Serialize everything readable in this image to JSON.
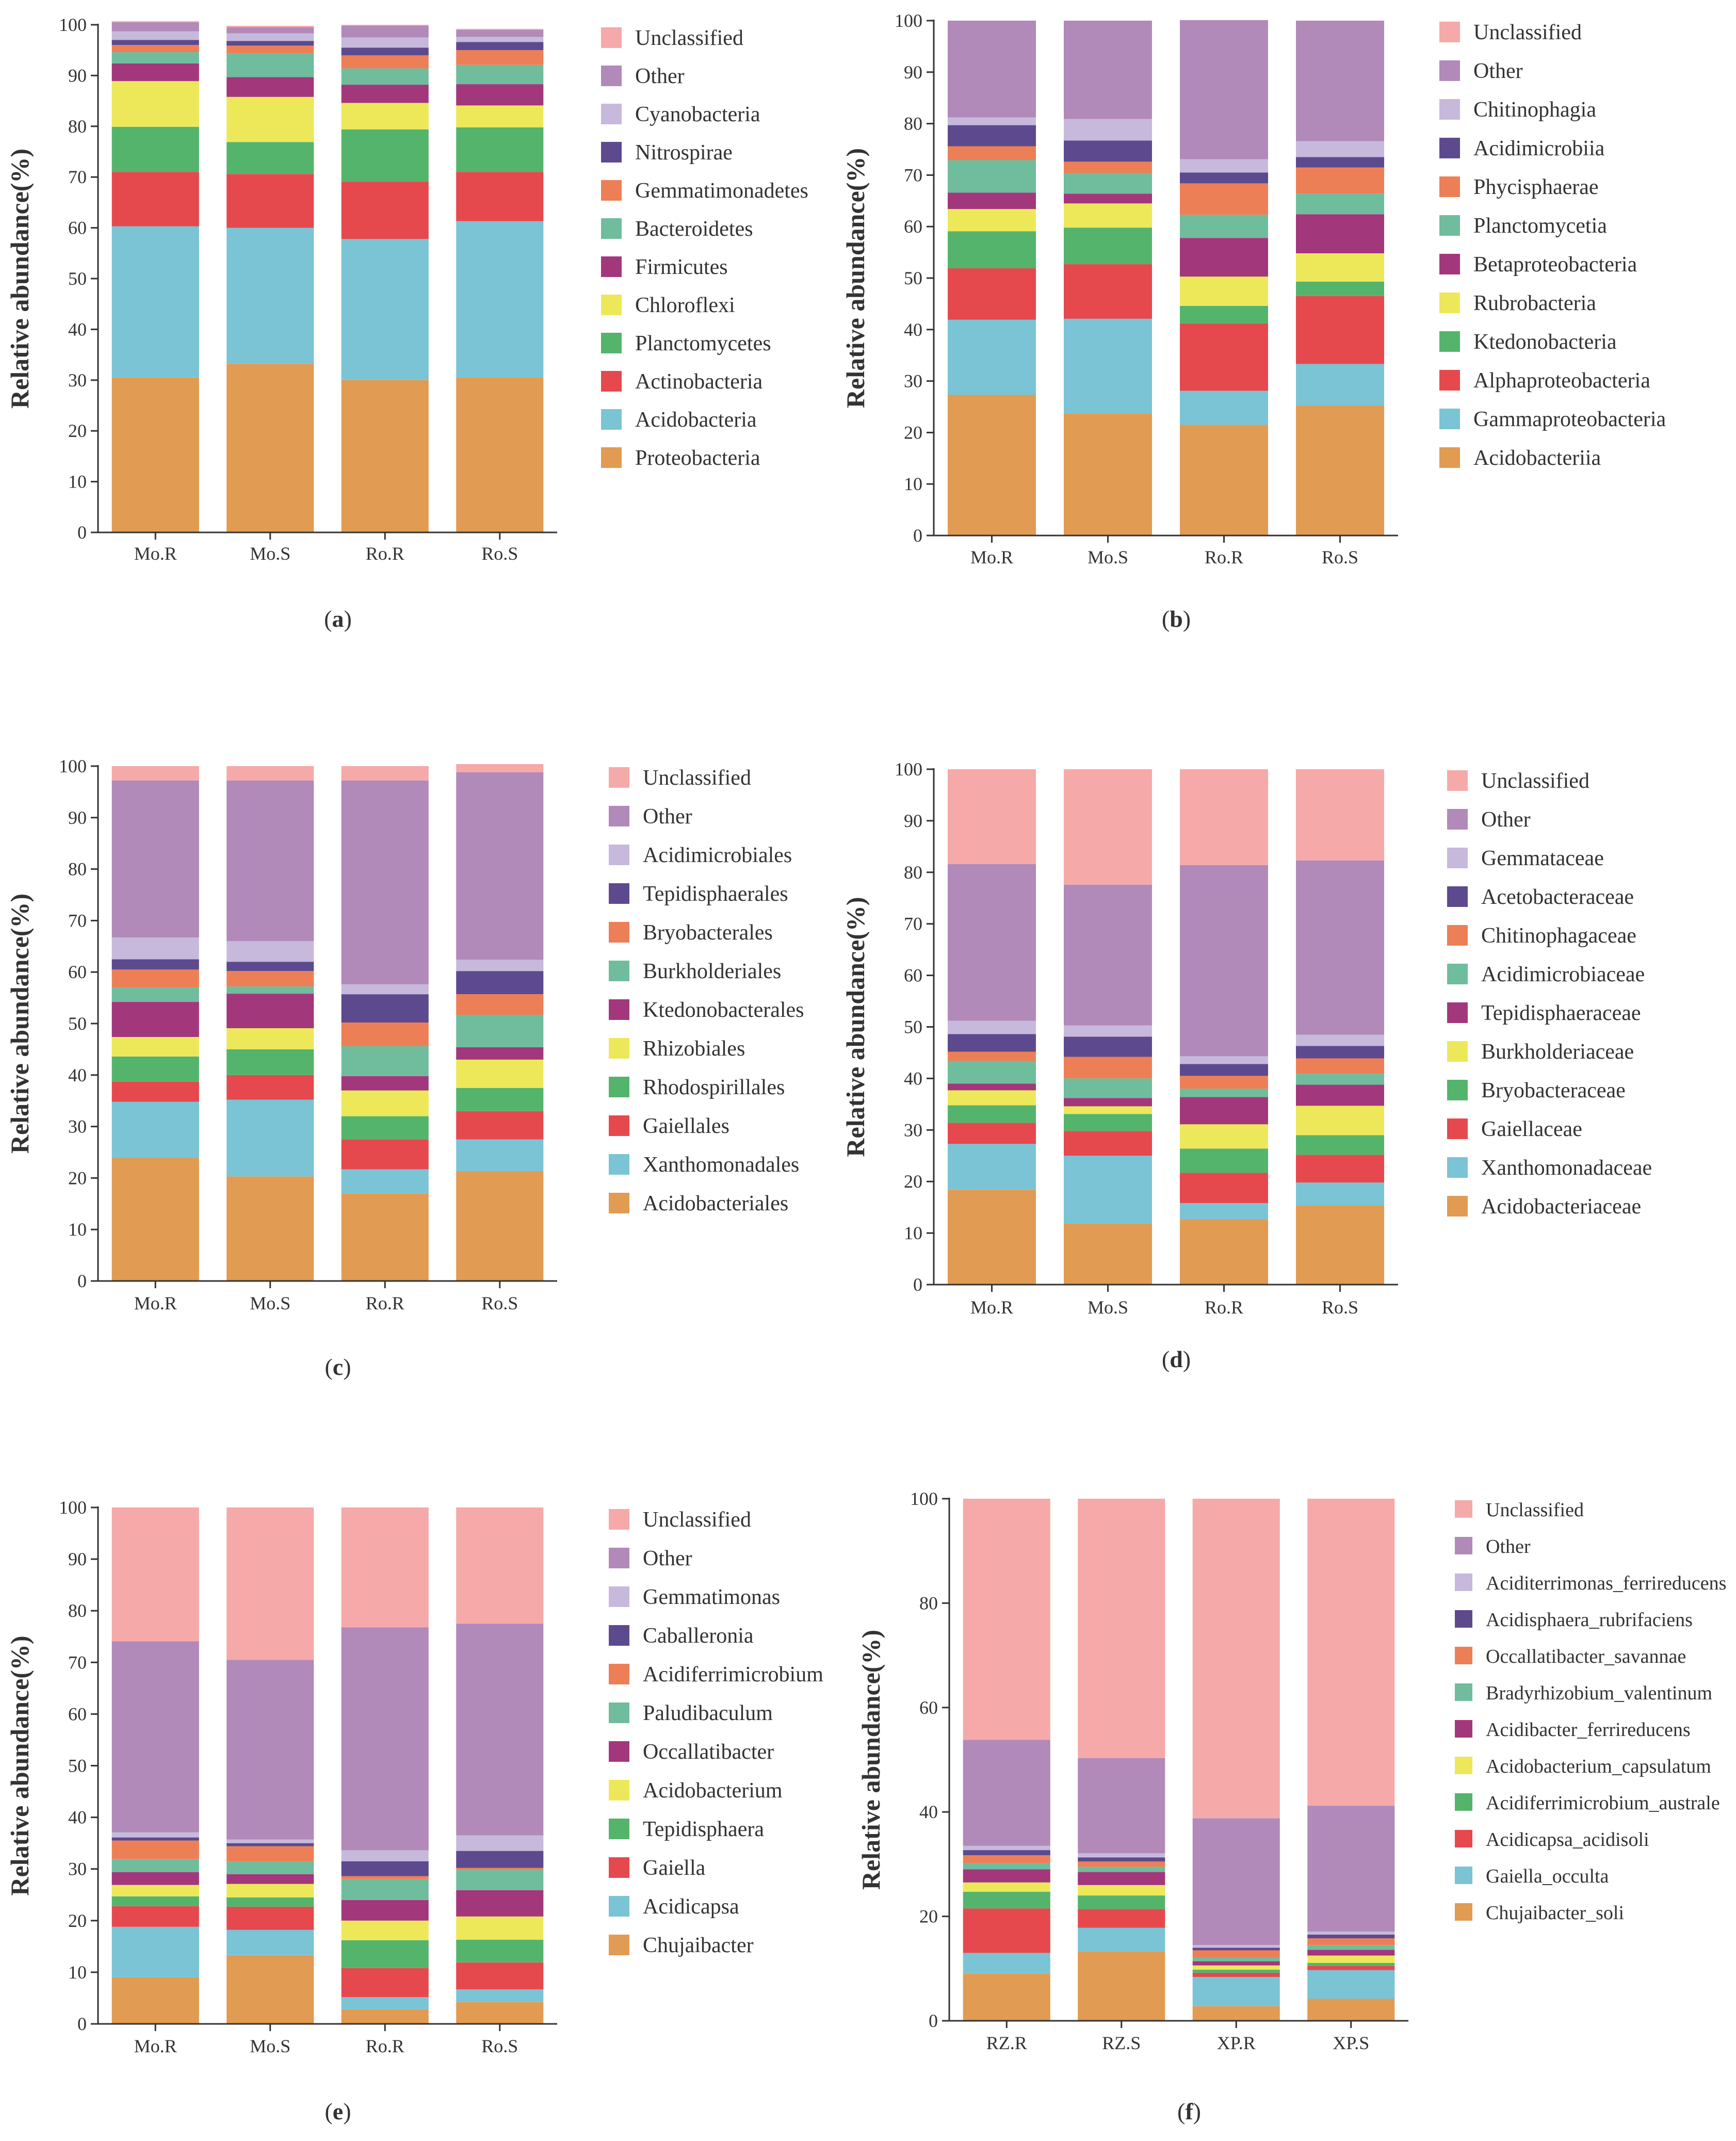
{
  "figure": {
    "palette": [
      "#e29b52",
      "#7ac4d5",
      "#e5494e",
      "#55b46b",
      "#ece85a",
      "#a3377c",
      "#6fbd9d",
      "#ed7f57",
      "#5d4a8e",
      "#c7b9dc",
      "#b18ab9",
      "#f6a9a9"
    ]
  },
  "chart_data": [
    {
      "type": "bar",
      "stacked": true,
      "panel_label": "a",
      "ylabel": "Relative abundance(%)",
      "xlabel": "",
      "ylim": [
        0,
        100
      ],
      "yticks": [
        0,
        10,
        20,
        30,
        40,
        50,
        60,
        70,
        80,
        90,
        100
      ],
      "categories": [
        "Mo.R",
        "Mo.S",
        "Ro.R",
        "Ro.S"
      ],
      "legend_position": "right",
      "series": [
        {
          "name": "Proteobacteria",
          "values": [
            30.5,
            33.2,
            30.0,
            30.5
          ]
        },
        {
          "name": "Acidobacteria",
          "values": [
            29.8,
            26.8,
            27.8,
            30.8
          ]
        },
        {
          "name": "Actinobacteria",
          "values": [
            10.7,
            10.6,
            11.3,
            9.7
          ]
        },
        {
          "name": "Planctomycetes",
          "values": [
            8.9,
            6.3,
            10.3,
            8.8
          ]
        },
        {
          "name": "Chloroflexi",
          "values": [
            9.0,
            8.9,
            5.2,
            4.3
          ]
        },
        {
          "name": "Firmicutes",
          "values": [
            3.5,
            3.9,
            3.6,
            4.2
          ]
        },
        {
          "name": "Bacteroidetes",
          "values": [
            2.2,
            4.7,
            3.2,
            3.8
          ]
        },
        {
          "name": "Gemmatimonadetes",
          "values": [
            1.4,
            1.5,
            2.6,
            2.9
          ]
        },
        {
          "name": "Nitrospirae",
          "values": [
            1.0,
            0.9,
            1.5,
            1.6
          ]
        },
        {
          "name": "Cyanobacteria",
          "values": [
            1.7,
            1.5,
            2.0,
            1.0
          ]
        },
        {
          "name": "Other",
          "values": [
            1.8,
            1.2,
            2.3,
            1.4
          ]
        },
        {
          "name": "Unclassified",
          "values": [
            0.2,
            0.3,
            0.2,
            0.2
          ]
        }
      ]
    },
    {
      "type": "bar",
      "stacked": true,
      "panel_label": "b",
      "ylabel": "Relative abundance(%)",
      "xlabel": "",
      "ylim": [
        0,
        100
      ],
      "yticks": [
        0,
        10,
        20,
        30,
        40,
        50,
        60,
        70,
        80,
        90,
        100
      ],
      "categories": [
        "Mo.R",
        "Mo.S",
        "Ro.R",
        "Ro.S"
      ],
      "legend_position": "right",
      "series": [
        {
          "name": "Acidobacteriia",
          "values": [
            27.3,
            23.7,
            21.5,
            25.2
          ]
        },
        {
          "name": "Gammaproteobacteria",
          "values": [
            14.6,
            18.4,
            6.6,
            8.1
          ]
        },
        {
          "name": "Alphaproteobacteria",
          "values": [
            10.0,
            10.6,
            13.1,
            13.2
          ]
        },
        {
          "name": "Ktedonobacteria",
          "values": [
            7.2,
            7.1,
            3.4,
            2.8
          ]
        },
        {
          "name": "Rubrobacteria",
          "values": [
            4.3,
            4.7,
            5.7,
            5.5
          ]
        },
        {
          "name": "Betaproteobacteria",
          "values": [
            3.2,
            1.9,
            7.5,
            7.6
          ]
        },
        {
          "name": "Planctomycetia",
          "values": [
            6.3,
            4.0,
            4.5,
            4.0
          ]
        },
        {
          "name": "Phycisphaerae",
          "values": [
            2.7,
            2.2,
            6.1,
            5.1
          ]
        },
        {
          "name": "Acidimicrobiia",
          "values": [
            4.1,
            4.1,
            2.1,
            2.0
          ]
        },
        {
          "name": "Chitinophagia",
          "values": [
            1.5,
            4.2,
            2.6,
            3.1
          ]
        },
        {
          "name": "Other",
          "values": [
            18.8,
            19.1,
            27.0,
            23.4
          ]
        },
        {
          "name": "Unclassified",
          "values": [
            0,
            0,
            0,
            0
          ]
        }
      ]
    },
    {
      "type": "bar",
      "stacked": true,
      "panel_label": "c",
      "ylabel": "Relative abundance(%)",
      "xlabel": "",
      "ylim": [
        0,
        100
      ],
      "yticks": [
        0,
        10,
        20,
        30,
        40,
        50,
        60,
        70,
        80,
        90,
        100
      ],
      "categories": [
        "Mo.R",
        "Mo.S",
        "Ro.R",
        "Ro.S"
      ],
      "legend_position": "right",
      "series": [
        {
          "name": "Acidobacteriales",
          "values": [
            23.9,
            20.3,
            17.0,
            21.3
          ]
        },
        {
          "name": "Xanthomonadales",
          "values": [
            10.9,
            14.9,
            4.7,
            6.2
          ]
        },
        {
          "name": "Gaiellales",
          "values": [
            3.9,
            4.8,
            5.8,
            5.5
          ]
        },
        {
          "name": "Rhodospirillales",
          "values": [
            4.9,
            5.0,
            4.5,
            4.5
          ]
        },
        {
          "name": "Rhizobiales",
          "values": [
            3.8,
            4.1,
            5.0,
            5.5
          ]
        },
        {
          "name": "Ktedonobacterales",
          "values": [
            6.8,
            6.7,
            2.8,
            2.4
          ]
        },
        {
          "name": "Burkholderiales",
          "values": [
            2.8,
            1.4,
            5.8,
            6.3
          ]
        },
        {
          "name": "Bryobacterales",
          "values": [
            3.5,
            3.0,
            4.6,
            4.0
          ]
        },
        {
          "name": "Tepidisphaerales",
          "values": [
            2.0,
            1.8,
            5.5,
            4.5
          ]
        },
        {
          "name": "Acidimicrobiales",
          "values": [
            4.2,
            4.0,
            1.9,
            2.2
          ]
        },
        {
          "name": "Other",
          "values": [
            30.5,
            31.2,
            39.6,
            36.4
          ]
        },
        {
          "name": "Unclassified",
          "values": [
            2.8,
            2.8,
            2.8,
            1.6
          ]
        }
      ]
    },
    {
      "type": "bar",
      "stacked": true,
      "panel_label": "d",
      "ylabel": "Relative abundance(%)",
      "xlabel": "",
      "ylim": [
        0,
        100
      ],
      "yticks": [
        0,
        10,
        20,
        30,
        40,
        50,
        60,
        70,
        80,
        90,
        100
      ],
      "categories": [
        "Mo.R",
        "Mo.S",
        "Ro.R",
        "Ro.S"
      ],
      "legend_position": "right",
      "series": [
        {
          "name": "Acidobacteriaceae",
          "values": [
            18.4,
            11.8,
            12.7,
            15.4
          ]
        },
        {
          "name": "Xanthomonadaceae",
          "values": [
            8.9,
            13.2,
            3.1,
            4.4
          ]
        },
        {
          "name": "Gaiellaceae",
          "values": [
            4.1,
            4.8,
            5.9,
            5.4
          ]
        },
        {
          "name": "Bryobacteraceae",
          "values": [
            3.4,
            3.3,
            4.7,
            3.8
          ]
        },
        {
          "name": "Burkholderiaceae",
          "values": [
            2.9,
            1.5,
            4.7,
            5.7
          ]
        },
        {
          "name": "Tepidisphaeraceae",
          "values": [
            1.3,
            1.6,
            5.3,
            4.1
          ]
        },
        {
          "name": "Acidimicrobiaceae",
          "values": [
            4.4,
            3.8,
            1.6,
            2.1
          ]
        },
        {
          "name": "Chitinophagaceae",
          "values": [
            1.8,
            4.2,
            2.5,
            3.0
          ]
        },
        {
          "name": "Acetobacteraceae",
          "values": [
            3.4,
            3.9,
            2.3,
            2.4
          ]
        },
        {
          "name": "Gemmataceae",
          "values": [
            2.6,
            2.2,
            1.5,
            2.2
          ]
        },
        {
          "name": "Other",
          "values": [
            30.4,
            27.3,
            37.1,
            33.8
          ]
        },
        {
          "name": "Unclassified",
          "values": [
            18.4,
            22.4,
            18.6,
            17.7
          ]
        }
      ]
    },
    {
      "type": "bar",
      "stacked": true,
      "panel_label": "e",
      "ylabel": "Relative abundance(%)",
      "xlabel": "",
      "ylim": [
        0,
        100
      ],
      "yticks": [
        0,
        10,
        20,
        30,
        40,
        50,
        60,
        70,
        80,
        90,
        100
      ],
      "categories": [
        "Mo.R",
        "Mo.S",
        "Ro.R",
        "Ro.S"
      ],
      "legend_position": "right",
      "series": [
        {
          "name": "Chujaibacter",
          "values": [
            9.0,
            13.3,
            2.8,
            4.2
          ]
        },
        {
          "name": "Acidicapsa",
          "values": [
            9.8,
            4.9,
            2.4,
            2.5
          ]
        },
        {
          "name": "Gaiella",
          "values": [
            4.0,
            4.5,
            5.6,
            5.2
          ]
        },
        {
          "name": "Tepidisphaera",
          "values": [
            1.9,
            1.8,
            5.4,
            4.4
          ]
        },
        {
          "name": "Acidobacterium",
          "values": [
            2.2,
            2.6,
            3.8,
            4.5
          ]
        },
        {
          "name": "Occallatibacter",
          "values": [
            2.5,
            1.9,
            4.0,
            5.1
          ]
        },
        {
          "name": "Paludibaculum",
          "values": [
            2.5,
            2.4,
            4.0,
            3.9
          ]
        },
        {
          "name": "Acidiferrimicrobium",
          "values": [
            3.6,
            3.0,
            0.6,
            0.4
          ]
        },
        {
          "name": "Caballeronia",
          "values": [
            0.6,
            0.6,
            2.9,
            3.3
          ]
        },
        {
          "name": "Gemmatimonas",
          "values": [
            1.0,
            0.7,
            2.1,
            3.0
          ]
        },
        {
          "name": "Other",
          "values": [
            37.0,
            34.8,
            43.2,
            41.0
          ]
        },
        {
          "name": "Unclassified",
          "values": [
            25.9,
            29.5,
            23.2,
            22.5
          ]
        }
      ]
    },
    {
      "type": "bar",
      "stacked": true,
      "panel_label": "f",
      "ylabel": "Relative abundance(%)",
      "xlabel": "",
      "ylim": [
        0,
        100
      ],
      "yticks": [
        0,
        20,
        40,
        60,
        80,
        100
      ],
      "categories": [
        "RZ.R",
        "RZ.S",
        "XP.R",
        "XP.S"
      ],
      "legend_position": "right",
      "series": [
        {
          "name": "Chujaibacter_soli",
          "values": [
            9.0,
            13.3,
            2.8,
            4.2
          ]
        },
        {
          "name": "Gaiella_occulta",
          "values": [
            4.0,
            4.5,
            5.6,
            5.5
          ]
        },
        {
          "name": "Acidicapsa_acidisoli",
          "values": [
            8.5,
            3.6,
            0.8,
            0.8
          ]
        },
        {
          "name": "Acidiferrimicrobium_australe",
          "values": [
            3.2,
            2.6,
            0.6,
            0.6
          ]
        },
        {
          "name": "Acidobacterium_capsulatum",
          "values": [
            1.8,
            2.0,
            0.8,
            1.4
          ]
        },
        {
          "name": "Acidibacter_ferrireducens",
          "values": [
            2.5,
            2.5,
            0.8,
            1.1
          ]
        },
        {
          "name": "Bradyrhizobium_valentinum",
          "values": [
            1.2,
            1.0,
            0.7,
            0.9
          ]
        },
        {
          "name": "Occallatibacter_savannae",
          "values": [
            1.5,
            1.0,
            1.4,
            1.3
          ]
        },
        {
          "name": "Acidisphaera_rubrifaciens",
          "values": [
            1.0,
            0.8,
            0.5,
            0.7
          ]
        },
        {
          "name": "Aciditerrimonas_ferrireducens",
          "values": [
            0.8,
            0.8,
            0.5,
            0.6
          ]
        },
        {
          "name": "Other",
          "values": [
            20.3,
            18.2,
            24.3,
            24.1
          ]
        },
        {
          "name": "Unclassified",
          "values": [
            46.2,
            49.7,
            61.2,
            58.8
          ]
        }
      ]
    }
  ]
}
